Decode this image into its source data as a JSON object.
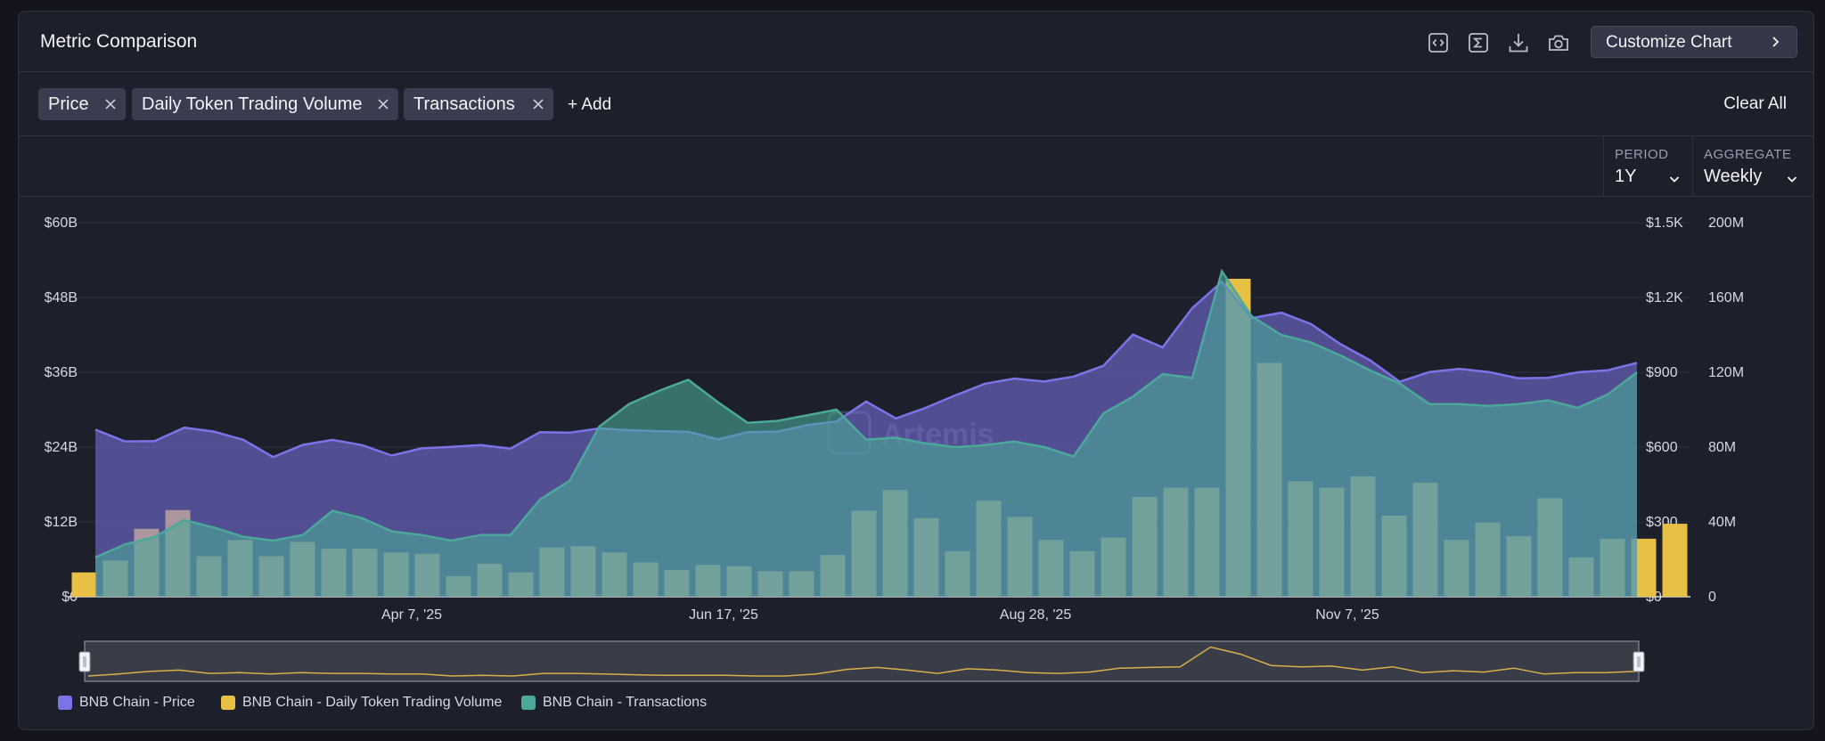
{
  "header": {
    "title": "Metric Comparison",
    "tools": [
      "embed-code-icon",
      "sigma-formula-icon",
      "download-icon",
      "camera-icon"
    ],
    "customize_label": "Customize Chart"
  },
  "metrics": {
    "chips": [
      "Price",
      "Daily Token Trading Volume",
      "Transactions"
    ],
    "add_label": "+ Add",
    "clear_label": "Clear All"
  },
  "controls": {
    "period_label": "PERIOD",
    "period_value": "1Y",
    "aggregate_label": "AGGREGATE",
    "aggregate_value": "Weekly"
  },
  "watermark": "Artemis",
  "colors": {
    "price": "#7b74e8",
    "volume": "#e8c046",
    "transactions": "#4ba89a"
  },
  "chart_data": {
    "type": "bar",
    "x_tick_labels": [
      "Apr 7, '25",
      "Jun 17, '25",
      "Aug 28, '25",
      "Nov 7, '25"
    ],
    "x_tick_index": [
      10.5,
      20.5,
      30.5,
      40.5
    ],
    "axes": {
      "volume": {
        "ticks": [
          "$0",
          "$12B",
          "$24B",
          "$36B",
          "$48B",
          "$60B"
        ],
        "ylim": [
          0,
          60
        ]
      },
      "price": {
        "ticks": [
          "$0",
          "$300",
          "$600",
          "$900",
          "$1.2K",
          "$1.5K"
        ],
        "ylim": [
          0,
          1500
        ]
      },
      "transactions": {
        "ticks": [
          "0",
          "40M",
          "80M",
          "120M",
          "160M",
          "200M"
        ],
        "ylim": [
          0,
          200
        ]
      }
    },
    "series": [
      {
        "name": "BNB Chain - Price",
        "kind": "area",
        "axis": "price",
        "values": [
          670,
          623,
          624,
          678,
          662,
          629,
          560,
          609,
          629,
          608,
          566,
          595,
          601,
          608,
          594,
          660,
          658,
          675,
          668,
          664,
          661,
          631,
          660,
          662,
          688,
          703,
          783,
          715,
          757,
          807,
          854,
          875,
          863,
          883,
          926,
          1051,
          1000,
          1158,
          1263,
          1117,
          1139,
          1094,
          1013,
          948,
          862,
          901,
          914,
          901,
          876,
          878,
          900,
          908,
          938
        ]
      },
      {
        "name": "BNB Chain - Daily Token Trading Volume",
        "kind": "bar",
        "axis": "volume",
        "values": [
          3.9,
          5.8,
          10.9,
          13.9,
          6.5,
          9.1,
          6.5,
          8.8,
          7.7,
          7.7,
          7.1,
          6.9,
          3.3,
          5.3,
          3.9,
          7.9,
          8.1,
          7.1,
          5.5,
          4.3,
          5.1,
          4.9,
          4.1,
          4.1,
          6.7,
          13.8,
          17.1,
          12.6,
          7.3,
          15.4,
          12.8,
          9.1,
          7.3,
          9.5,
          16.0,
          17.5,
          17.5,
          51.0,
          37.5,
          18.5,
          17.5,
          19.3,
          13.0,
          18.3,
          9.1,
          11.9,
          9.7,
          15.8,
          6.3,
          9.3,
          9.3,
          11.7
        ]
      },
      {
        "name": "BNB Chain - Transactions",
        "kind": "area",
        "axis": "transactions",
        "values": [
          21,
          28,
          32,
          41,
          37,
          32,
          30,
          33,
          46,
          42,
          35,
          33,
          30,
          33,
          33,
          52,
          62,
          91,
          103,
          110,
          116,
          104,
          93,
          94,
          97,
          100,
          84,
          85,
          82,
          80,
          81,
          83,
          80,
          75,
          98,
          107,
          119,
          117,
          174,
          150,
          140,
          136,
          129,
          121,
          114,
          103,
          103,
          102,
          103,
          105,
          101,
          108,
          120
        ]
      }
    ],
    "navigator": {
      "values": [
        4,
        7,
        11,
        13,
        8,
        9,
        7,
        9,
        8,
        8,
        7,
        7,
        4,
        5,
        4,
        8,
        8,
        7,
        6,
        5,
        5,
        5,
        4,
        4,
        7,
        14,
        17,
        13,
        8,
        15,
        13,
        9,
        8,
        10,
        16,
        17,
        18,
        48,
        37,
        20,
        18,
        19,
        13,
        18,
        9,
        12,
        10,
        16,
        7,
        9,
        9,
        11
      ]
    },
    "legend_position": "bottom-left",
    "grid": true
  }
}
